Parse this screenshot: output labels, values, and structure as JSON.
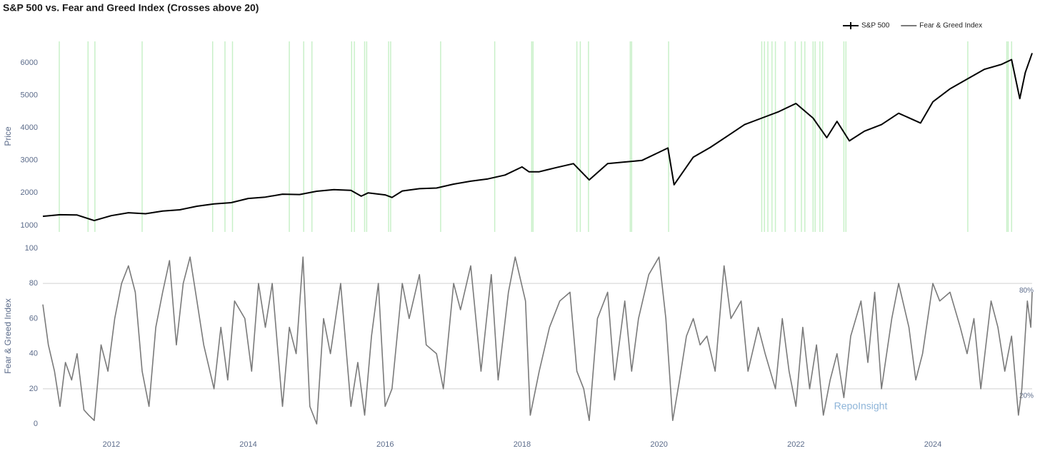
{
  "chart_data": [
    {
      "type": "line",
      "title": "S&P 500 vs. Fear and Greed Index (Crosses above 20)",
      "ylabel": "Price",
      "xlim": [
        2011.0,
        2025.45
      ],
      "ylim": [
        800,
        6660
      ],
      "yticks": [
        1000,
        2000,
        3000,
        4000,
        5000,
        6000
      ],
      "crosses": [
        2011.24,
        2011.66,
        2011.76,
        2012.45,
        2013.48,
        2013.66,
        2013.77,
        2014.6,
        2014.81,
        2014.93,
        2015.51,
        2015.55,
        2015.7,
        2015.73,
        2016.05,
        2016.08,
        2016.81,
        2017.6,
        2018.14,
        2018.16,
        2018.8,
        2018.85,
        2018.97,
        2019.58,
        2019.6,
        2020.14,
        2021.5,
        2021.54,
        2021.59,
        2021.65,
        2021.7,
        2021.84,
        2021.99,
        2022.08,
        2022.13,
        2022.25,
        2022.28,
        2022.35,
        2022.39,
        2022.7,
        2022.73,
        2024.51,
        2025.08,
        2025.1,
        2025.15
      ],
      "cross_color": "#c8f0c8",
      "series": [
        {
          "name": "S&P 500",
          "color": "#000000",
          "x": [
            2011.0,
            2011.25,
            2011.5,
            2011.75,
            2012.0,
            2012.25,
            2012.5,
            2012.75,
            2013.0,
            2013.25,
            2013.5,
            2013.75,
            2014.0,
            2014.25,
            2014.5,
            2014.75,
            2015.0,
            2015.25,
            2015.5,
            2015.65,
            2015.75,
            2016.0,
            2016.1,
            2016.25,
            2016.5,
            2016.75,
            2017.0,
            2017.25,
            2017.5,
            2017.75,
            2018.0,
            2018.1,
            2018.25,
            2018.5,
            2018.75,
            2018.98,
            2019.25,
            2019.5,
            2019.75,
            2020.0,
            2020.13,
            2020.22,
            2020.5,
            2020.75,
            2021.0,
            2021.25,
            2021.5,
            2021.75,
            2022.0,
            2022.25,
            2022.45,
            2022.6,
            2022.78,
            2023.0,
            2023.25,
            2023.5,
            2023.82,
            2024.0,
            2024.25,
            2024.5,
            2024.75,
            2025.0,
            2025.15,
            2025.27,
            2025.35,
            2025.45
          ],
          "values": [
            1280,
            1330,
            1320,
            1150,
            1300,
            1390,
            1360,
            1440,
            1480,
            1590,
            1660,
            1700,
            1830,
            1870,
            1960,
            1950,
            2050,
            2100,
            2080,
            1900,
            2000,
            1940,
            1860,
            2060,
            2130,
            2150,
            2270,
            2360,
            2430,
            2550,
            2800,
            2650,
            2650,
            2780,
            2900,
            2400,
            2900,
            2950,
            3000,
            3250,
            3380,
            2250,
            3100,
            3400,
            3750,
            4100,
            4300,
            4500,
            4750,
            4300,
            3700,
            4200,
            3600,
            3900,
            4100,
            4450,
            4150,
            4800,
            5200,
            5500,
            5800,
            5950,
            6100,
            4900,
            5700,
            6300
          ]
        }
      ]
    },
    {
      "type": "line",
      "ylabel": "Fear & Greed Index",
      "watermark": "RepoInsight",
      "xlim": [
        2011.0,
        2025.45
      ],
      "ylim": [
        -2,
        102
      ],
      "yticks": [
        0,
        20,
        40,
        60,
        80,
        100
      ],
      "xticks": [
        2012,
        2014,
        2016,
        2018,
        2020,
        2022,
        2024
      ],
      "reference_lines": [
        {
          "value": 80,
          "label": "80%"
        },
        {
          "value": 20,
          "label": "20%"
        }
      ],
      "series": [
        {
          "name": "Fear & Greed Index",
          "color": "#7a7a7a",
          "x": [
            2011.0,
            2011.08,
            2011.17,
            2011.25,
            2011.33,
            2011.42,
            2011.5,
            2011.6,
            2011.67,
            2011.75,
            2011.85,
            2011.95,
            2012.05,
            2012.15,
            2012.25,
            2012.35,
            2012.45,
            2012.55,
            2012.65,
            2012.75,
            2012.85,
            2012.95,
            2013.05,
            2013.15,
            2013.25,
            2013.35,
            2013.5,
            2013.6,
            2013.7,
            2013.8,
            2013.95,
            2014.05,
            2014.15,
            2014.25,
            2014.35,
            2014.5,
            2014.6,
            2014.7,
            2014.8,
            2014.9,
            2015.0,
            2015.1,
            2015.2,
            2015.35,
            2015.5,
            2015.6,
            2015.7,
            2015.8,
            2015.9,
            2016.0,
            2016.1,
            2016.25,
            2016.35,
            2016.5,
            2016.6,
            2016.75,
            2016.85,
            2017.0,
            2017.1,
            2017.25,
            2017.4,
            2017.55,
            2017.65,
            2017.8,
            2017.9,
            2018.05,
            2018.12,
            2018.25,
            2018.4,
            2018.55,
            2018.7,
            2018.8,
            2018.9,
            2018.98,
            2019.1,
            2019.25,
            2019.35,
            2019.5,
            2019.6,
            2019.7,
            2019.85,
            2020.0,
            2020.1,
            2020.2,
            2020.3,
            2020.4,
            2020.5,
            2020.6,
            2020.7,
            2020.82,
            2020.95,
            2021.05,
            2021.2,
            2021.3,
            2021.45,
            2021.55,
            2021.7,
            2021.8,
            2021.9,
            2022.0,
            2022.1,
            2022.2,
            2022.3,
            2022.4,
            2022.5,
            2022.6,
            2022.7,
            2022.8,
            2022.95,
            2023.05,
            2023.15,
            2023.25,
            2023.4,
            2023.5,
            2023.65,
            2023.75,
            2023.85,
            2024.0,
            2024.1,
            2024.25,
            2024.4,
            2024.5,
            2024.6,
            2024.7,
            2024.85,
            2024.95,
            2025.05,
            2025.15,
            2025.25,
            2025.3,
            2025.38,
            2025.43,
            2025.45
          ],
          "values": [
            68,
            45,
            30,
            10,
            35,
            25,
            40,
            8,
            5,
            2,
            45,
            30,
            60,
            80,
            90,
            75,
            30,
            10,
            55,
            75,
            93,
            45,
            80,
            95,
            70,
            45,
            20,
            55,
            25,
            70,
            60,
            30,
            80,
            55,
            80,
            10,
            55,
            40,
            95,
            10,
            0,
            60,
            40,
            80,
            10,
            35,
            5,
            50,
            80,
            10,
            20,
            80,
            60,
            85,
            45,
            40,
            20,
            80,
            65,
            90,
            30,
            85,
            25,
            75,
            95,
            70,
            5,
            30,
            55,
            70,
            75,
            30,
            20,
            2,
            60,
            75,
            25,
            70,
            30,
            60,
            85,
            95,
            60,
            2,
            25,
            50,
            60,
            45,
            50,
            30,
            90,
            60,
            70,
            30,
            55,
            40,
            20,
            60,
            30,
            10,
            55,
            20,
            45,
            5,
            25,
            40,
            15,
            50,
            70,
            35,
            75,
            20,
            60,
            80,
            55,
            25,
            40,
            80,
            70,
            75,
            55,
            40,
            60,
            20,
            70,
            55,
            30,
            50,
            5,
            20,
            70,
            55,
            75
          ]
        }
      ]
    }
  ]
}
